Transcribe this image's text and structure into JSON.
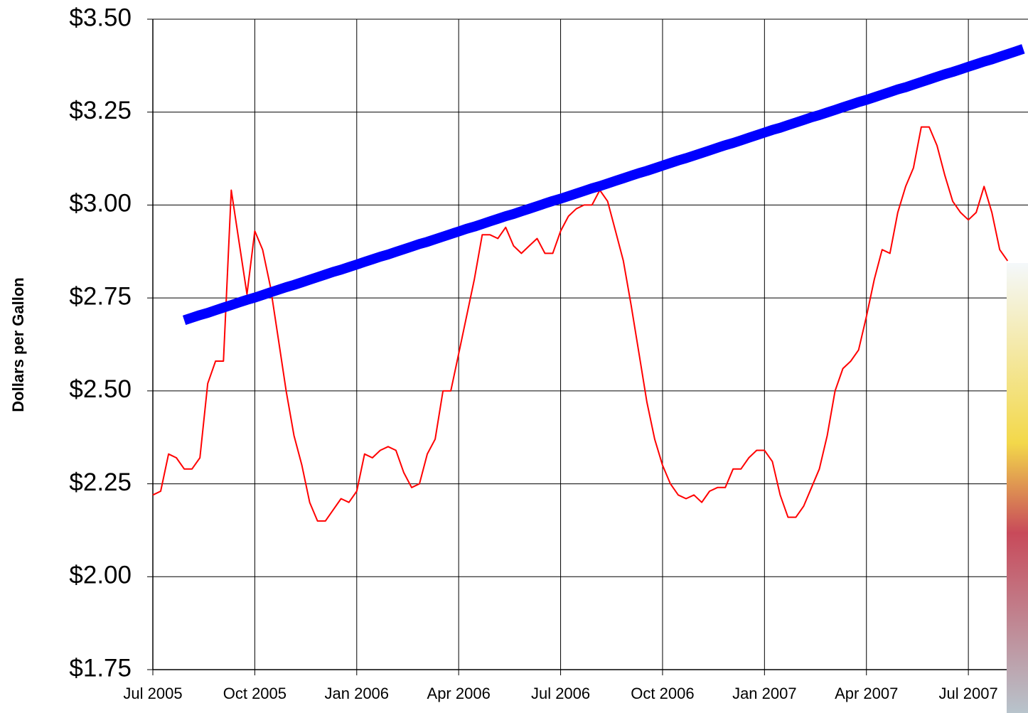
{
  "chart_data": {
    "type": "line",
    "y_label": "Dollars per Gallon",
    "categories": [
      "Jul 2005",
      null,
      null,
      null,
      null,
      null,
      null,
      null,
      null,
      null,
      null,
      null,
      null,
      "Oct 2005",
      null,
      null,
      null,
      null,
      null,
      null,
      null,
      null,
      null,
      null,
      null,
      null,
      "Jan 2006",
      null,
      null,
      null,
      null,
      null,
      null,
      null,
      null,
      null,
      null,
      null,
      null,
      "Apr 2006",
      null,
      null,
      null,
      null,
      null,
      null,
      null,
      null,
      null,
      null,
      null,
      null,
      "Jul 2006",
      null,
      null,
      null,
      null,
      null,
      null,
      null,
      null,
      null,
      null,
      null,
      null,
      "Oct 2006",
      null,
      null,
      null,
      null,
      null,
      null,
      null,
      null,
      null,
      null,
      null,
      null,
      "Jan 2007",
      null,
      null,
      null,
      null,
      null,
      null,
      null,
      null,
      null,
      null,
      null,
      null,
      "Apr 2007",
      null,
      null,
      null,
      null,
      null,
      null,
      null,
      null,
      null,
      null,
      null,
      null,
      "Jul 2007",
      null,
      null,
      null,
      null,
      null,
      null,
      null
    ],
    "series": [
      {
        "color": "#ff0000",
        "width": 2,
        "values": [
          2.22,
          2.23,
          2.33,
          2.32,
          2.29,
          2.29,
          2.32,
          2.52,
          2.58,
          2.58,
          3.04,
          2.9,
          2.76,
          2.93,
          2.88,
          2.78,
          2.64,
          2.5,
          2.38,
          2.3,
          2.2,
          2.15,
          2.15,
          2.18,
          2.21,
          2.2,
          2.23,
          2.33,
          2.32,
          2.34,
          2.35,
          2.34,
          2.28,
          2.24,
          2.25,
          2.33,
          2.37,
          2.5,
          2.5,
          2.6,
          2.7,
          2.8,
          2.92,
          2.92,
          2.91,
          2.94,
          2.89,
          2.87,
          2.89,
          2.91,
          2.87,
          2.87,
          2.93,
          2.97,
          2.99,
          3.0,
          3.0,
          3.04,
          3.01,
          2.93,
          2.85,
          2.73,
          2.6,
          2.47,
          2.37,
          2.3,
          2.25,
          2.22,
          2.21,
          2.22,
          2.2,
          2.23,
          2.24,
          2.24,
          2.29,
          2.29,
          2.32,
          2.34,
          2.34,
          2.31,
          2.22,
          2.16,
          2.16,
          2.19,
          2.24,
          2.29,
          2.38,
          2.5,
          2.56,
          2.58,
          2.61,
          2.7,
          2.8,
          2.88,
          2.87,
          2.98,
          3.05,
          3.1,
          3.21,
          3.21,
          3.16,
          3.08,
          3.01,
          2.98,
          2.96,
          2.98,
          3.05,
          2.98,
          2.88,
          2.85,
          null,
          null
        ]
      },
      {
        "color": "#0000ff",
        "width": 14,
        "values": [
          null,
          null,
          null,
          null,
          2.69,
          2.697,
          2.704,
          2.71,
          2.717,
          2.724,
          2.731,
          2.738,
          2.745,
          2.751,
          2.758,
          2.765,
          2.772,
          2.779,
          2.785,
          2.792,
          2.799,
          2.806,
          2.813,
          2.82,
          2.826,
          2.833,
          2.84,
          2.847,
          2.854,
          2.861,
          2.867,
          2.874,
          2.881,
          2.888,
          2.895,
          2.901,
          2.908,
          2.915,
          2.922,
          2.929,
          2.936,
          2.942,
          2.949,
          2.956,
          2.963,
          2.97,
          2.976,
          2.983,
          2.99,
          2.997,
          3.004,
          3.011,
          3.017,
          3.024,
          3.031,
          3.038,
          3.045,
          3.051,
          3.058,
          3.065,
          3.072,
          3.079,
          3.086,
          3.092,
          3.099,
          3.106,
          3.113,
          3.12,
          3.126,
          3.133,
          3.14,
          3.147,
          3.154,
          3.161,
          3.167,
          3.174,
          3.181,
          3.188,
          3.195,
          3.202,
          3.208,
          3.215,
          3.222,
          3.229,
          3.236,
          3.242,
          3.249,
          3.256,
          3.263,
          3.27,
          3.277,
          3.283,
          3.29,
          3.297,
          3.304,
          3.311,
          3.317,
          3.324,
          3.331,
          3.338,
          3.345,
          3.352,
          3.358,
          3.365,
          3.372,
          3.379,
          3.386,
          3.392,
          3.399,
          3.406,
          3.413,
          3.42
        ]
      }
    ],
    "ylim": [
      1.75,
      3.5
    ],
    "yticks": [
      {
        "value": 1.75,
        "label": "$1.75"
      },
      {
        "value": 2.0,
        "label": "$2.00"
      },
      {
        "value": 2.25,
        "label": "$2.25"
      },
      {
        "value": 2.5,
        "label": "$2.50"
      },
      {
        "value": 2.75,
        "label": "$2.75"
      },
      {
        "value": 3.0,
        "label": "$3.00"
      },
      {
        "value": 3.25,
        "label": "$3.25"
      },
      {
        "value": 3.5,
        "label": "$3.50"
      }
    ],
    "grid": true
  }
}
